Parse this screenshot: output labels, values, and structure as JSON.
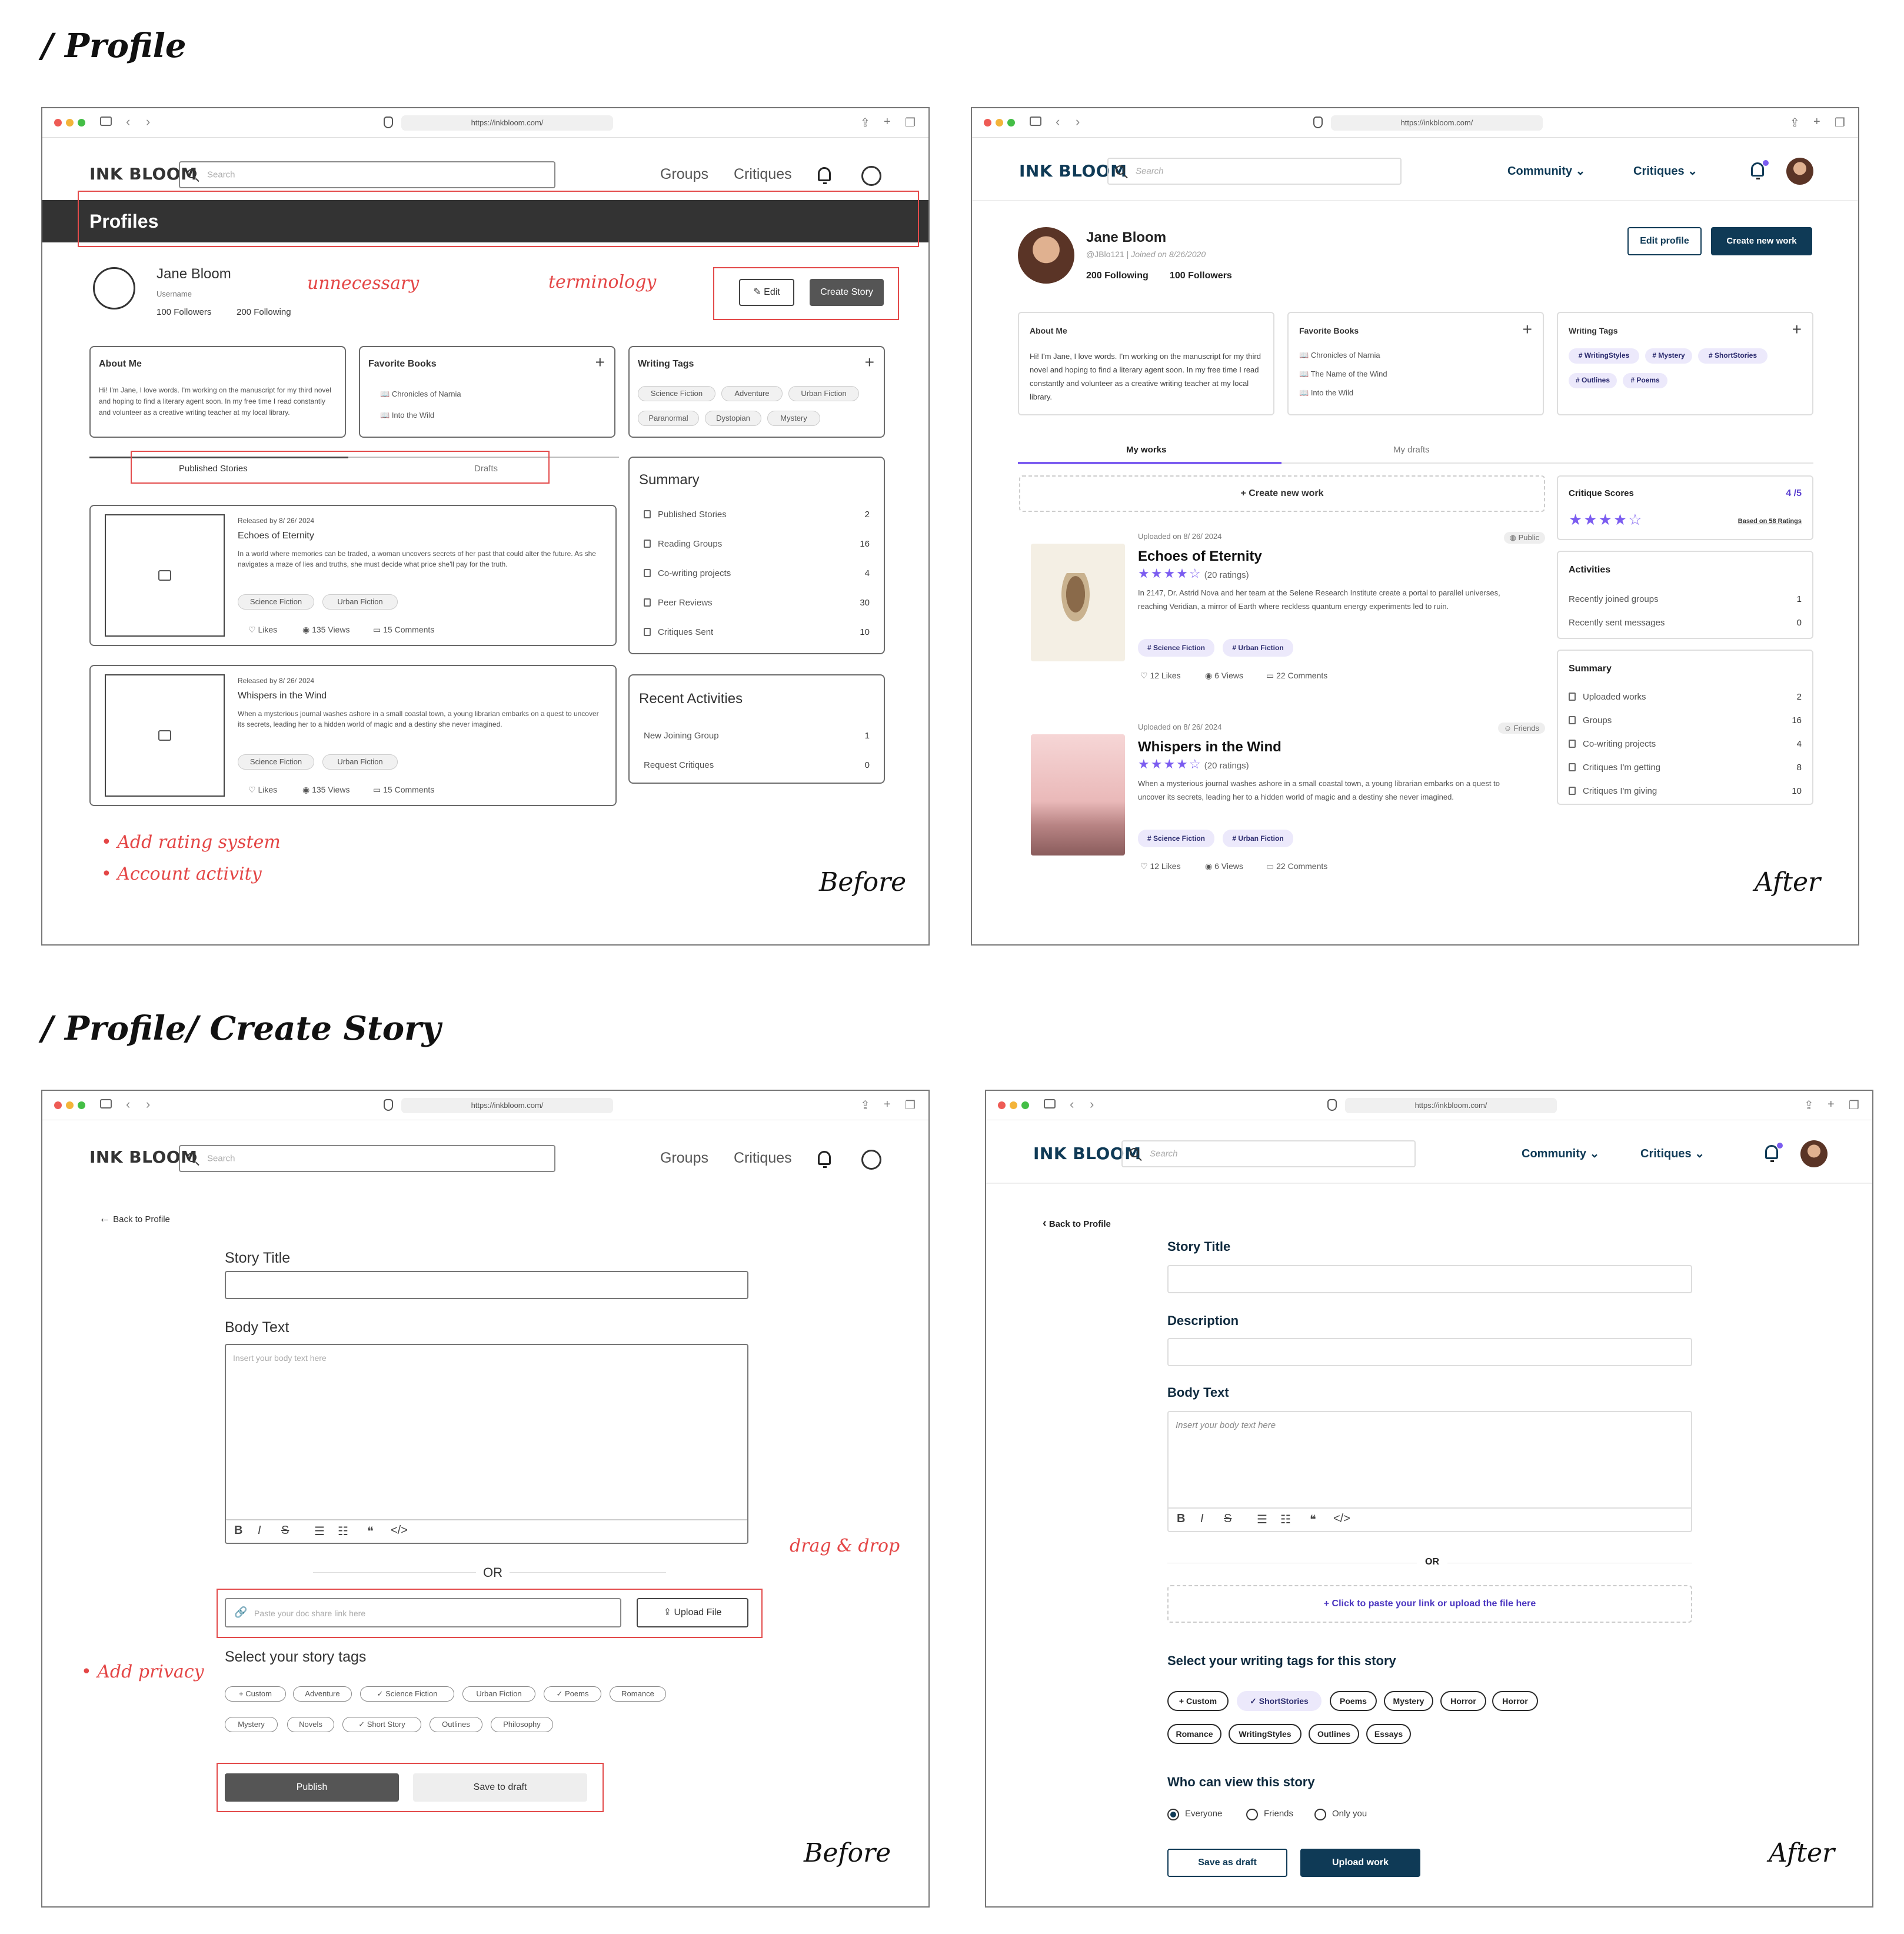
{
  "sections": {
    "profile": "/ Profile",
    "create": "/ Profile/ Create Story"
  },
  "browser": {
    "url": "https://inkbloom.com/"
  },
  "brand": "INK BLOOM",
  "labels": {
    "before": "Before",
    "after": "After"
  },
  "old_nav": {
    "search": "Search",
    "groups": "Groups",
    "critiques": "Critiques"
  },
  "new_nav": {
    "search": "Search",
    "community": "Community",
    "critiques": "Critiques"
  },
  "before_profile": {
    "banner": "Profiles",
    "name": "Jane Bloom",
    "username": "Username",
    "followers": "100 Followers",
    "following": "200 Following",
    "edit": "Edit",
    "create_story": "Create Story",
    "notes": {
      "unnecessary": "unnecessary",
      "terminology": "terminology",
      "rating": "Add rating system",
      "activity": "Account activity"
    },
    "about_title": "About Me",
    "about_text": "Hi! I'm Jane, I love words. I'm working on the manuscript for my third novel and hoping to find a literary agent soon. In my free time I read constantly and volunteer as a creative writing teacher at my local library.",
    "fav_title": "Favorite Books",
    "fav_books": [
      "Chronicles of Narnia",
      "Into the Wild"
    ],
    "tags_title": "Writing Tags",
    "tags": [
      "Science Fiction",
      "Adventure",
      "Urban Fiction",
      "Paranormal",
      "Dystopian",
      "Mystery"
    ],
    "tabs": [
      "Published Stories",
      "Drafts"
    ],
    "stories": [
      {
        "released": "Released by 8/ 26/ 2024",
        "title": "Echoes of Eternity",
        "desc": "In a world where memories can be traded, a woman uncovers secrets of her past that could alter the future. As she navigates a maze of lies and truths, she must decide what price she'll pay for the truth.",
        "tags": [
          "Science Fiction",
          "Urban Fiction"
        ],
        "likes": "Likes",
        "views": "135 Views",
        "comments": "15 Comments"
      },
      {
        "released": "Released by 8/ 26/ 2024",
        "title": "Whispers in the Wind",
        "desc": "When a mysterious journal washes ashore in a small coastal town, a young librarian embarks on a quest to uncover its secrets, leading her to a hidden world of magic and a destiny she never imagined.",
        "tags": [
          "Science Fiction",
          "Urban Fiction"
        ],
        "likes": "Likes",
        "views": "135 Views",
        "comments": "15 Comments"
      }
    ],
    "summary_title": "Summary",
    "summary": [
      {
        "label": "Published Stories",
        "value": "2"
      },
      {
        "label": "Reading Groups",
        "value": "16"
      },
      {
        "label": "Co-writing projects",
        "value": "4"
      },
      {
        "label": "Peer Reviews",
        "value": "30"
      },
      {
        "label": "Critiques Sent",
        "value": "10"
      }
    ],
    "recent_title": "Recent Activities",
    "recent": [
      {
        "label": "New Joining Group",
        "value": "1"
      },
      {
        "label": "Request Critiques",
        "value": "0"
      }
    ]
  },
  "after_profile": {
    "name": "Jane Bloom",
    "handle": "@JBlo121",
    "joined": "Joined on 8/26/2020",
    "following": "200 Following",
    "followers": "100 Followers",
    "edit": "Edit profile",
    "create": "Create new work",
    "about_title": "About Me",
    "about_text": "Hi! I'm Jane, I love words. I'm working on the manuscript for my third novel and hoping to find a literary agent soon. In my free time I read constantly and volunteer as a creative writing teacher at my local library.",
    "fav_title": "Favorite Books",
    "fav_books": [
      "Chronicles of Narnia",
      "The Name of the Wind",
      "Into the Wild"
    ],
    "tags_title": "Writing Tags",
    "tags": [
      "# WritingStyles",
      "# Mystery",
      "# ShortStories",
      "# Outlines",
      "# Poems"
    ],
    "tabs": [
      "My works",
      "My drafts"
    ],
    "create_new": "+ Create new work",
    "works": [
      {
        "uploaded": "Uploaded on 8/ 26/ 2024",
        "visibility": "Public",
        "title": "Echoes of Eternity",
        "ratings": "(20 ratings)",
        "desc": "In 2147, Dr. Astrid Nova and her team at the Selene Research Institute create a portal to parallel universes, reaching Veridian, a mirror of Earth where reckless quantum energy experiments led to ruin.",
        "tags": [
          "# Science Fiction",
          "# Urban Fiction"
        ],
        "likes": "12 Likes",
        "views": "6 Views",
        "comments": "22 Comments"
      },
      {
        "uploaded": "Uploaded on 8/ 26/ 2024",
        "visibility": "Friends",
        "title": "Whispers in the Wind",
        "ratings": "(20 ratings)",
        "desc": "When a mysterious journal washes ashore in a small coastal town, a young librarian embarks on a quest to uncover its secrets, leading her to a hidden world of magic and a destiny she never imagined.",
        "tags": [
          "# Science Fiction",
          "# Urban Fiction"
        ],
        "likes": "12 Likes",
        "views": "6 Views",
        "comments": "22 Comments"
      }
    ],
    "critique_title": "Critique Scores",
    "critique_score": "4 /5",
    "critique_rating": 4,
    "critique_based": "Based on 58 Ratings",
    "activities_title": "Activities",
    "activities": [
      {
        "label": "Recently joined groups",
        "value": "1"
      },
      {
        "label": "Recently sent messages",
        "value": "0"
      }
    ],
    "summary_title": "Summary",
    "summary": [
      {
        "label": "Uploaded works",
        "value": "2"
      },
      {
        "label": "Groups",
        "value": "16"
      },
      {
        "label": "Co-writing projects",
        "value": "4"
      },
      {
        "label": "Critiques I'm getting",
        "value": "8"
      },
      {
        "label": "Critiques I'm giving",
        "value": "10"
      }
    ]
  },
  "before_create": {
    "back": "Back to Profile",
    "story_title": "Story Title",
    "body_text": "Body Text",
    "body_ph": "Insert your body text here",
    "or": "OR",
    "link_ph": "Paste your doc share link here",
    "upload": "Upload File",
    "tags_title": "Select your story tags",
    "tags_row1": [
      "+ Custom",
      "Adventure",
      "✓ Science Fiction",
      "Urban Fiction",
      "✓ Poems",
      "Romance"
    ],
    "tags_row2": [
      "Mystery",
      "Novels",
      "✓ Short Story",
      "Outlines",
      "Philosophy"
    ],
    "publish": "Publish",
    "save": "Save to draft",
    "notes": {
      "drag": "drag & drop",
      "privacy": "Add privacy"
    }
  },
  "after_create": {
    "back": "Back to Profile",
    "story_title": "Story Title",
    "description": "Description",
    "body_text": "Body Text",
    "body_ph": "Insert your body text here",
    "or": "OR",
    "dropzone": "+ Click to paste your link or upload the file here",
    "tags_title": "Select your writing tags for this story",
    "tags_row1": [
      "+ Custom",
      "✓ ShortStories",
      "Poems",
      "Mystery",
      "Horror",
      "Horror"
    ],
    "tags_row2": [
      "Romance",
      "WritingStyles",
      "Outlines",
      "Essays"
    ],
    "who_title": "Who can view this story",
    "options": [
      "Everyone",
      "Friends",
      "Only you"
    ],
    "save": "Save as draft",
    "upload": "Upload work"
  }
}
